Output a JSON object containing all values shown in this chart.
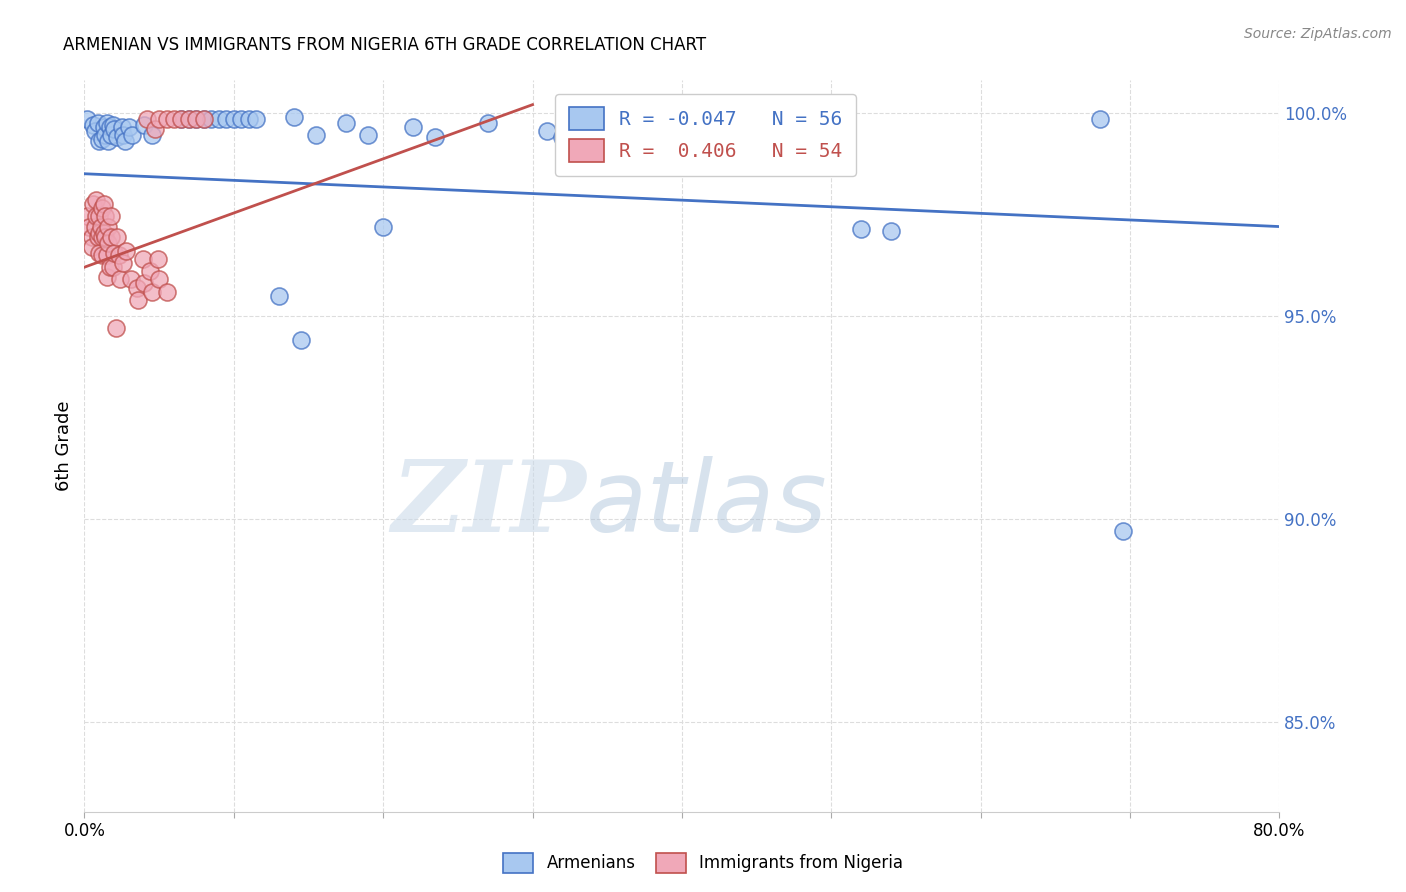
{
  "title": "ARMENIAN VS IMMIGRANTS FROM NIGERIA 6TH GRADE CORRELATION CHART",
  "source": "Source: ZipAtlas.com",
  "ylabel": "6th Grade",
  "xlim": [
    0.0,
    0.8
  ],
  "ylim": [
    0.828,
    1.008
  ],
  "xticks": [
    0.0,
    0.1,
    0.2,
    0.3,
    0.4,
    0.5,
    0.6,
    0.7,
    0.8
  ],
  "xticklabels": [
    "0.0%",
    "",
    "",
    "",
    "",
    "",
    "",
    "",
    "80.0%"
  ],
  "yticks": [
    0.85,
    0.9,
    0.95,
    1.0
  ],
  "yticklabels": [
    "85.0%",
    "90.0%",
    "95.0%",
    "100.0%"
  ],
  "legend_blue_r": "-0.047",
  "legend_blue_n": "56",
  "legend_pink_r": "0.406",
  "legend_pink_n": "54",
  "blue_color": "#a8c8f0",
  "pink_color": "#f0a8b8",
  "blue_line_color": "#4472c4",
  "pink_line_color": "#c0504d",
  "blue_points": [
    [
      0.002,
      0.9985
    ],
    [
      0.006,
      0.997
    ],
    [
      0.007,
      0.9955
    ],
    [
      0.009,
      0.9975
    ],
    [
      0.01,
      0.993
    ],
    [
      0.012,
      0.9935
    ],
    [
      0.013,
      0.9965
    ],
    [
      0.014,
      0.9945
    ],
    [
      0.015,
      0.9975
    ],
    [
      0.016,
      0.993
    ],
    [
      0.017,
      0.9965
    ],
    [
      0.018,
      0.9945
    ],
    [
      0.019,
      0.997
    ],
    [
      0.02,
      0.996
    ],
    [
      0.022,
      0.994
    ],
    [
      0.025,
      0.9965
    ],
    [
      0.026,
      0.9945
    ],
    [
      0.027,
      0.993
    ],
    [
      0.03,
      0.9965
    ],
    [
      0.032,
      0.9945
    ],
    [
      0.065,
      0.9985
    ],
    [
      0.07,
      0.9985
    ],
    [
      0.075,
      0.9985
    ],
    [
      0.08,
      0.9985
    ],
    [
      0.085,
      0.9985
    ],
    [
      0.09,
      0.9985
    ],
    [
      0.095,
      0.9985
    ],
    [
      0.1,
      0.9985
    ],
    [
      0.105,
      0.9985
    ],
    [
      0.11,
      0.9985
    ],
    [
      0.115,
      0.9985
    ],
    [
      0.04,
      0.997
    ],
    [
      0.045,
      0.9945
    ],
    [
      0.14,
      0.999
    ],
    [
      0.155,
      0.9945
    ],
    [
      0.175,
      0.9975
    ],
    [
      0.19,
      0.9945
    ],
    [
      0.22,
      0.9965
    ],
    [
      0.235,
      0.994
    ],
    [
      0.27,
      0.9975
    ],
    [
      0.31,
      0.9955
    ],
    [
      0.32,
      0.994
    ],
    [
      0.34,
      0.997
    ],
    [
      0.37,
      0.9955
    ],
    [
      0.41,
      0.9945
    ],
    [
      0.415,
      0.993
    ],
    [
      0.43,
      0.9945
    ],
    [
      0.435,
      0.993
    ],
    [
      0.51,
      0.9945
    ],
    [
      0.52,
      0.9715
    ],
    [
      0.54,
      0.971
    ],
    [
      0.13,
      0.955
    ],
    [
      0.2,
      0.972
    ],
    [
      0.145,
      0.944
    ],
    [
      0.68,
      0.9985
    ],
    [
      0.695,
      0.897
    ]
  ],
  "pink_points": [
    [
      0.002,
      0.9745
    ],
    [
      0.003,
      0.972
    ],
    [
      0.005,
      0.9695
    ],
    [
      0.005,
      0.967
    ],
    [
      0.006,
      0.9775
    ],
    [
      0.007,
      0.972
    ],
    [
      0.008,
      0.9785
    ],
    [
      0.008,
      0.9745
    ],
    [
      0.009,
      0.9695
    ],
    [
      0.01,
      0.9655
    ],
    [
      0.01,
      0.9745
    ],
    [
      0.01,
      0.9705
    ],
    [
      0.011,
      0.972
    ],
    [
      0.012,
      0.9695
    ],
    [
      0.012,
      0.965
    ],
    [
      0.012,
      0.9765
    ],
    [
      0.013,
      0.9775
    ],
    [
      0.013,
      0.9705
    ],
    [
      0.014,
      0.9745
    ],
    [
      0.014,
      0.9695
    ],
    [
      0.015,
      0.965
    ],
    [
      0.015,
      0.9595
    ],
    [
      0.016,
      0.972
    ],
    [
      0.016,
      0.968
    ],
    [
      0.017,
      0.962
    ],
    [
      0.018,
      0.9745
    ],
    [
      0.018,
      0.9695
    ],
    [
      0.019,
      0.962
    ],
    [
      0.02,
      0.9655
    ],
    [
      0.022,
      0.9695
    ],
    [
      0.023,
      0.965
    ],
    [
      0.024,
      0.959
    ],
    [
      0.026,
      0.963
    ],
    [
      0.028,
      0.966
    ],
    [
      0.042,
      0.9985
    ],
    [
      0.047,
      0.996
    ],
    [
      0.05,
      0.9985
    ],
    [
      0.055,
      0.9985
    ],
    [
      0.06,
      0.9985
    ],
    [
      0.065,
      0.9985
    ],
    [
      0.07,
      0.9985
    ],
    [
      0.075,
      0.9985
    ],
    [
      0.08,
      0.9985
    ],
    [
      0.031,
      0.959
    ],
    [
      0.035,
      0.957
    ],
    [
      0.036,
      0.954
    ],
    [
      0.039,
      0.964
    ],
    [
      0.04,
      0.958
    ],
    [
      0.044,
      0.961
    ],
    [
      0.045,
      0.956
    ],
    [
      0.049,
      0.964
    ],
    [
      0.05,
      0.959
    ],
    [
      0.055,
      0.956
    ],
    [
      0.021,
      0.947
    ]
  ],
  "watermark_zip": "ZIP",
  "watermark_atlas": "atlas",
  "background_color": "#ffffff",
  "grid_color": "#dddddd"
}
